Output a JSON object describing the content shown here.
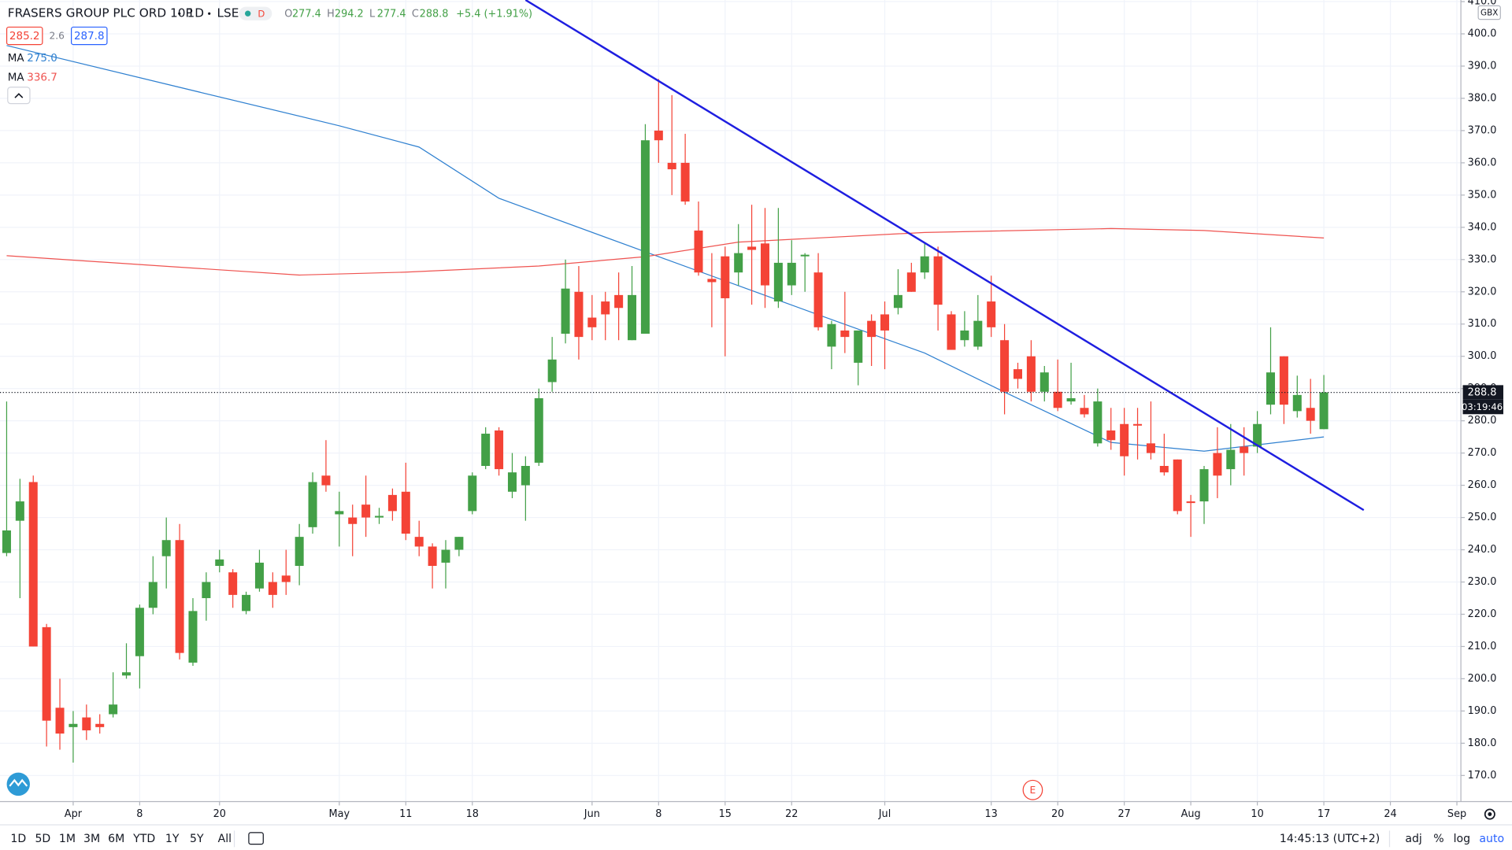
{
  "chart_data": {
    "type": "candlestick",
    "title": "FRASERS GROUP PLC ORD 10P",
    "interval": "1D",
    "exchange": "LSE",
    "status_badge": "D",
    "ohlc_labels": [
      "O",
      "H",
      "L",
      "C"
    ],
    "change_label": "+5.4 (+1.91%)",
    "bid": "285.2",
    "spread": "2.6",
    "ask": "287.8",
    "currency": "GBX",
    "countdown": "03:19:46",
    "earnings_marker": "E",
    "up_color": "#43a047",
    "down_color": "#f44336",
    "open": [
      239,
      249,
      261,
      216,
      191,
      185,
      188,
      186,
      189,
      201,
      207,
      222,
      238,
      243,
      205,
      225,
      235,
      233,
      221,
      228,
      230,
      232,
      235,
      247,
      263,
      251,
      250,
      254,
      250,
      257,
      258,
      244,
      241,
      236,
      240,
      252,
      266,
      277,
      258,
      260,
      267,
      292,
      307,
      320,
      312,
      317,
      319,
      305,
      307,
      370,
      360,
      360,
      339,
      324,
      331,
      326,
      334,
      335,
      317,
      322,
      331,
      326,
      303,
      308,
      298,
      311,
      313,
      315,
      326,
      326,
      331,
      313,
      305,
      303,
      317,
      305,
      296,
      300,
      289,
      289,
      286,
      284,
      273,
      277,
      279,
      279,
      273,
      266,
      268,
      255,
      255,
      270,
      265,
      272,
      272,
      285,
      300,
      283,
      284,
      277.4
    ],
    "high": [
      286,
      262,
      263,
      217,
      200,
      190,
      192,
      189,
      202,
      211,
      223,
      238,
      250,
      248,
      225,
      233,
      240,
      234,
      227,
      240,
      233,
      240,
      248,
      264,
      274,
      258,
      254,
      263,
      253,
      259,
      267,
      249,
      242,
      243,
      244,
      264,
      278,
      278,
      270,
      269,
      290,
      306,
      330,
      328,
      319,
      320,
      326,
      328,
      372,
      386,
      381,
      369,
      348,
      332,
      334,
      341,
      347,
      346,
      346,
      336,
      332,
      332,
      311,
      320,
      308,
      313,
      317,
      327,
      329,
      335,
      334,
      314,
      314,
      319,
      325,
      310,
      298,
      305,
      297,
      299,
      298,
      288,
      290,
      284,
      284,
      284,
      286,
      276,
      268,
      257,
      266,
      278,
      279,
      278,
      283,
      309,
      300,
      294,
      293,
      294.2
    ],
    "low": [
      238,
      225,
      210,
      179,
      178,
      174,
      181,
      183,
      188,
      200,
      197,
      220,
      228,
      206,
      204,
      218,
      233,
      222,
      220,
      227,
      222,
      226,
      229,
      245,
      258,
      241,
      238,
      244,
      248,
      249,
      243,
      238,
      228,
      228,
      238,
      251,
      265,
      263,
      256,
      249,
      266,
      289,
      304,
      299,
      305,
      305,
      305,
      305,
      307,
      360,
      350,
      347,
      325,
      309,
      300,
      322,
      316,
      315,
      315,
      319,
      320,
      308,
      296,
      301,
      291,
      297,
      296,
      313,
      320,
      324,
      308,
      302,
      303,
      302,
      306,
      282,
      290,
      286,
      286,
      283,
      285,
      281,
      272,
      271,
      263,
      268,
      268,
      263,
      251,
      244,
      248,
      256,
      260,
      263,
      270,
      282,
      279,
      281,
      276,
      277.4
    ],
    "close": [
      246,
      255,
      210,
      187,
      183,
      186,
      184,
      185,
      192,
      202,
      222,
      230,
      243,
      208,
      221,
      230,
      237,
      226,
      226,
      236,
      226,
      230,
      244,
      261,
      260,
      252,
      248,
      250,
      250.5,
      252,
      245,
      241,
      235,
      240,
      244,
      263,
      276,
      265,
      264,
      266,
      287,
      299,
      321,
      306,
      309,
      313,
      315,
      319,
      367,
      367,
      358,
      348,
      326,
      323,
      318,
      332,
      333,
      322,
      329,
      329,
      331.5,
      309,
      310,
      306,
      308,
      306,
      308,
      319,
      320,
      331,
      316,
      302,
      308,
      311,
      309,
      289,
      293,
      289,
      295,
      284,
      287,
      282,
      286,
      274,
      269,
      278.5,
      270,
      264,
      252,
      254.5,
      265,
      263,
      271,
      270,
      279,
      295,
      285,
      288,
      280,
      288.8
    ],
    "lines": [
      {
        "name": "MA",
        "value_label": "275.0",
        "color": "#2f80d0",
        "x": [
          0,
          12,
          25,
          31,
          37,
          48,
          61,
          69,
          75,
          83,
          90,
          99
        ],
        "values": [
          396.4,
          384.4,
          371.5,
          364.9,
          349,
          332.4,
          312.9,
          301,
          288.9,
          273.3,
          270.6,
          275.0
        ]
      },
      {
        "name": "MA",
        "value_label": "336.7",
        "color": "#ef5350",
        "x": [
          0,
          12,
          22,
          30,
          40,
          48,
          55,
          69,
          83,
          90,
          99
        ],
        "values": [
          331.2,
          327.9,
          325.2,
          326.1,
          328,
          330.9,
          335.4,
          338.4,
          339.6,
          339,
          336.7
        ]
      }
    ],
    "trendline": {
      "color": "#1e1ee0",
      "x": [
        39,
        102
      ],
      "values": [
        410.5,
        252.3
      ]
    },
    "xlim": [
      -0.5,
      109.3
    ],
    "xticks": [
      {
        "value": 5,
        "label": "Apr"
      },
      {
        "value": 10,
        "label": "8"
      },
      {
        "value": 16,
        "label": "20"
      },
      {
        "value": 25,
        "label": "May"
      },
      {
        "value": 30,
        "label": "11"
      },
      {
        "value": 35,
        "label": "18"
      },
      {
        "value": 44,
        "label": "Jun"
      },
      {
        "value": 49,
        "label": "8"
      },
      {
        "value": 54,
        "label": "15"
      },
      {
        "value": 59,
        "label": "22"
      },
      {
        "value": 66,
        "label": "Jul"
      },
      {
        "value": 74,
        "label": "13"
      },
      {
        "value": 79,
        "label": "20"
      },
      {
        "value": 84,
        "label": "27"
      },
      {
        "value": 89,
        "label": "Aug"
      },
      {
        "value": 94,
        "label": "10"
      },
      {
        "value": 99,
        "label": "17"
      },
      {
        "value": 104,
        "label": "24"
      },
      {
        "value": 109,
        "label": "Sep"
      }
    ],
    "ylim": [
      161.9,
      410.5
    ],
    "yticks": [
      {
        "value": 170,
        "label": "170.0"
      },
      {
        "value": 180,
        "label": "180.0"
      },
      {
        "value": 190,
        "label": "190.0"
      },
      {
        "value": 200,
        "label": "200.0"
      },
      {
        "value": 210,
        "label": "210.0"
      },
      {
        "value": 220,
        "label": "220.0"
      },
      {
        "value": 230,
        "label": "230.0"
      },
      {
        "value": 240,
        "label": "240.0"
      },
      {
        "value": 250,
        "label": "250.0"
      },
      {
        "value": 260,
        "label": "260.0"
      },
      {
        "value": 270,
        "label": "270.0"
      },
      {
        "value": 280,
        "label": "280.0"
      },
      {
        "value": 290,
        "label": "290.0"
      },
      {
        "value": 300,
        "label": "300.0"
      },
      {
        "value": 310,
        "label": "310.0"
      },
      {
        "value": 320,
        "label": "320.0"
      },
      {
        "value": 330,
        "label": "330.0"
      },
      {
        "value": 340,
        "label": "340.0"
      },
      {
        "value": 350,
        "label": "350.0"
      },
      {
        "value": 360,
        "label": "360.0"
      },
      {
        "value": 370,
        "label": "370.0"
      },
      {
        "value": 380,
        "label": "380.0"
      },
      {
        "value": 390,
        "label": "390.0"
      },
      {
        "value": 400,
        "label": "400.0"
      },
      {
        "value": 410,
        "label": "410.0"
      }
    ],
    "grid": true
  },
  "toolbar": {
    "ranges": [
      "1D",
      "5D",
      "1M",
      "3M",
      "6M",
      "YTD",
      "1Y",
      "5Y",
      "All"
    ],
    "time": "14:45:13 (UTC+2)",
    "scale_options": [
      "adj",
      "%",
      "log",
      "auto"
    ]
  }
}
